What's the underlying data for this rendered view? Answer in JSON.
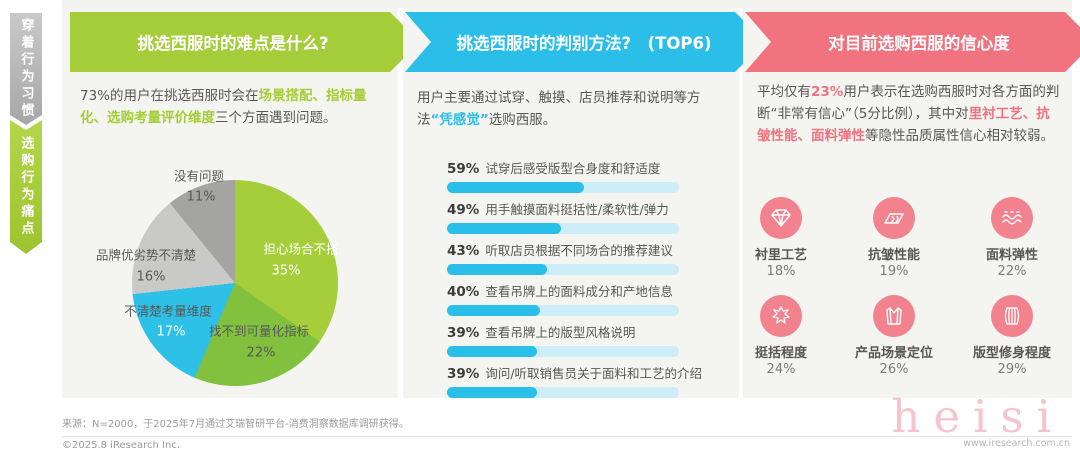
{
  "sidebar": {
    "tabs": [
      {
        "label": "穿着行为习惯",
        "color": "#b3b3b3",
        "active": false
      },
      {
        "label": "选购行为痛点",
        "color": "#a5cd39",
        "active": true
      }
    ]
  },
  "panel_difficulty": {
    "title": "挑选西服时的难点是什么?",
    "accent": "#a5cd39",
    "intro": {
      "pre": "73%的用户在挑选西服时会在",
      "highlight": "场景搭配、指标量化、选购考量评价维度",
      "post": "三个方面遇到问题。"
    }
  },
  "panel_method": {
    "title": "挑选西服时的判别方法?　(TOP6)",
    "accent": "#2bbee9",
    "intro": {
      "pre": "用户主要通过试穿、触摸、店员推荐和说明等方法",
      "highlight": "“凭感觉”",
      "post": "选购西服。"
    }
  },
  "panel_confidence": {
    "title": "对目前选购西服的信心度",
    "accent": "#f0737f",
    "intro": {
      "pre": "平均仅有",
      "hl1": "23%",
      "mid": "用户表示在选购西服时对各方面的判断“非常有信心”（5分比例），其中对",
      "hl2": "里衬工艺、抗皱性能、面料弹性",
      "post": "等隐性品质属性信心相对较弱。"
    }
  },
  "chart_data": [
    {
      "type": "pie",
      "title": "挑选西服时的难点是什么?",
      "start_angle_deg": 0,
      "direction": "clockwise",
      "slices": [
        {
          "label": "担心场合不搭",
          "pct": "35%",
          "value": 35,
          "color": "#a6ce3b"
        },
        {
          "label": "找不到可量化指标",
          "pct": "22%",
          "value": 22,
          "color": "#82c13d"
        },
        {
          "label": "不清楚考量维度",
          "pct": "17%",
          "value": 17,
          "color": "#2ec1e8"
        },
        {
          "label": "品牌优劣势不清楚",
          "pct": "16%",
          "value": 16,
          "color": "#c9c9c8"
        },
        {
          "label": "没有问题",
          "pct": "11%",
          "value": 11,
          "color": "#a4a4a3"
        }
      ]
    },
    {
      "type": "bar",
      "title": "挑选西服时的判别方法 (TOP6)",
      "orientation": "horizontal",
      "xlim": [
        0,
        100
      ],
      "bar_color": "#29bfe9",
      "track_color": "#cdeef8",
      "items": [
        {
          "pct": "59%",
          "value": 59,
          "label": "试穿后感受版型合身度和舒适度"
        },
        {
          "pct": "49%",
          "value": 49,
          "label": "用手触摸面料挺括性/柔软性/弹力"
        },
        {
          "pct": "43%",
          "value": 43,
          "label": "听取店员根据不同场合的推荐建议"
        },
        {
          "pct": "40%",
          "value": 40,
          "label": "查看吊牌上的面料成分和产地信息"
        },
        {
          "pct": "39%",
          "value": 39,
          "label": "查看吊牌上的版型风格说明"
        },
        {
          "pct": "39%",
          "value": 39,
          "label": "询问/听取销售员关于面料和工艺的介绍"
        }
      ]
    },
    {
      "type": "table",
      "title": "对目前选购西服的信心度",
      "icon_bg": "#f2838e",
      "items": [
        {
          "label": "衬里工艺",
          "value": "18%",
          "icon": "gem"
        },
        {
          "label": "抗皱性能",
          "value": "19%",
          "icon": "fabric-sheet"
        },
        {
          "label": "面料弹性",
          "value": "22%",
          "icon": "waves"
        },
        {
          "label": "挺括程度",
          "value": "24%",
          "icon": "crumple"
        },
        {
          "label": "产品场景定位",
          "value": "26%",
          "icon": "suit"
        },
        {
          "label": "版型修身程度",
          "value": "29%",
          "icon": "vest"
        }
      ]
    }
  ],
  "footer": {
    "source": "来源：N=2000，于2025年7月通过艾瑞智研平台-消费洞察数据库调研获得。",
    "copyright": "©2025.8 iResearch Inc.",
    "url": "www.iresearch.com.cn",
    "watermark": "heisi"
  }
}
